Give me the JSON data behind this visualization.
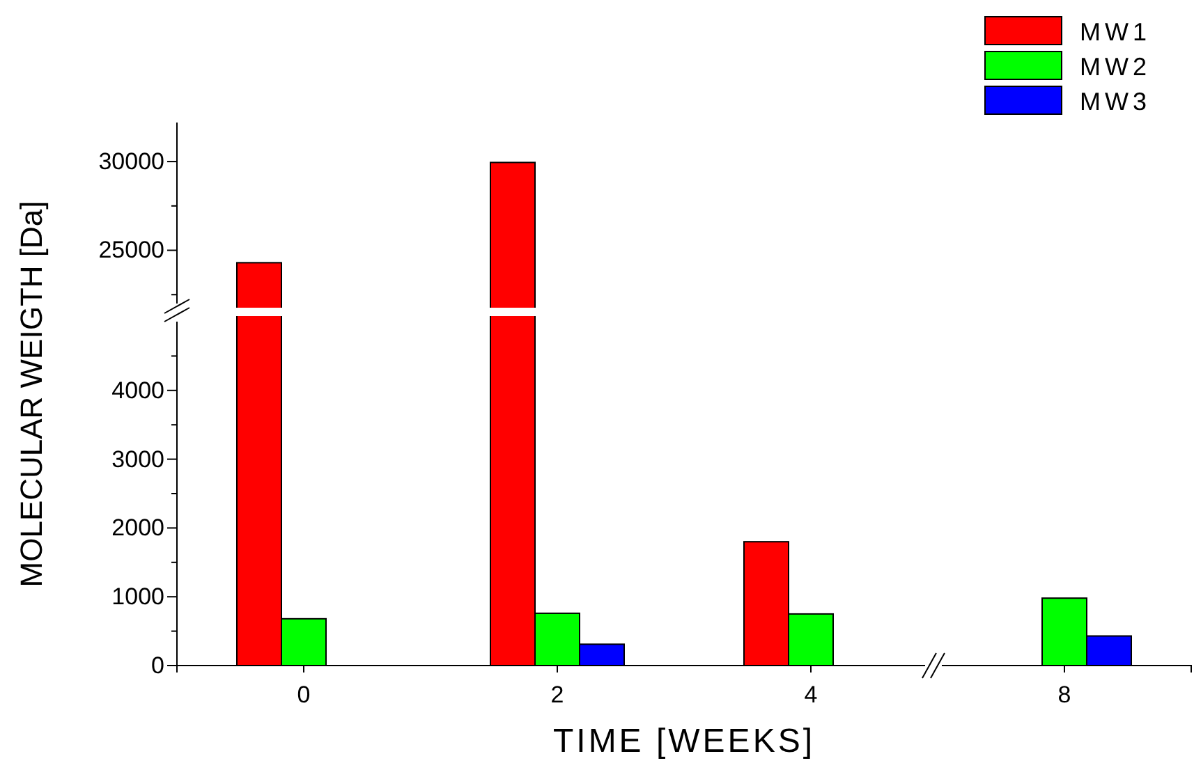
{
  "chart_data": [
    {
      "type": "bar",
      "categories": [
        "0",
        "2",
        "4",
        "8"
      ],
      "ylim": [
        22000,
        32200
      ],
      "yticks": [
        {
          "value": 22500,
          "label": null
        },
        25000,
        {
          "value": 27500,
          "label": null
        },
        30000
      ],
      "tick_labels": "y",
      "series": [
        {
          "color": "#ff0000",
          "values": [
            24300,
            29950,
            null,
            null
          ]
        }
      ]
    },
    {
      "type": "bar",
      "categories": [
        "0",
        "2",
        "4",
        "8"
      ],
      "xlabel": "TIME [WEEKS]",
      "ylabel": "MOLECULAR WEIGTH [Da]",
      "ylim": [
        0,
        5000
      ],
      "yticks": [
        0,
        {
          "value": 500,
          "label": null
        },
        1000,
        {
          "value": 1500,
          "label": null
        },
        2000,
        {
          "value": 2500,
          "label": null
        },
        3000,
        {
          "value": 3500,
          "label": null
        },
        4000,
        {
          "value": 4500,
          "label": null
        }
      ],
      "legend": "top right",
      "series": [
        {
          "name": "MW1",
          "color": "#ff0000",
          "values": [
            null,
            null,
            1800,
            null
          ]
        },
        {
          "name": "MW2",
          "color": "#00ff00",
          "values": [
            680,
            760,
            750,
            980
          ]
        },
        {
          "name": "MW3",
          "color": "#0000ff",
          "values": [
            null,
            310,
            null,
            430
          ]
        }
      ]
    }
  ]
}
